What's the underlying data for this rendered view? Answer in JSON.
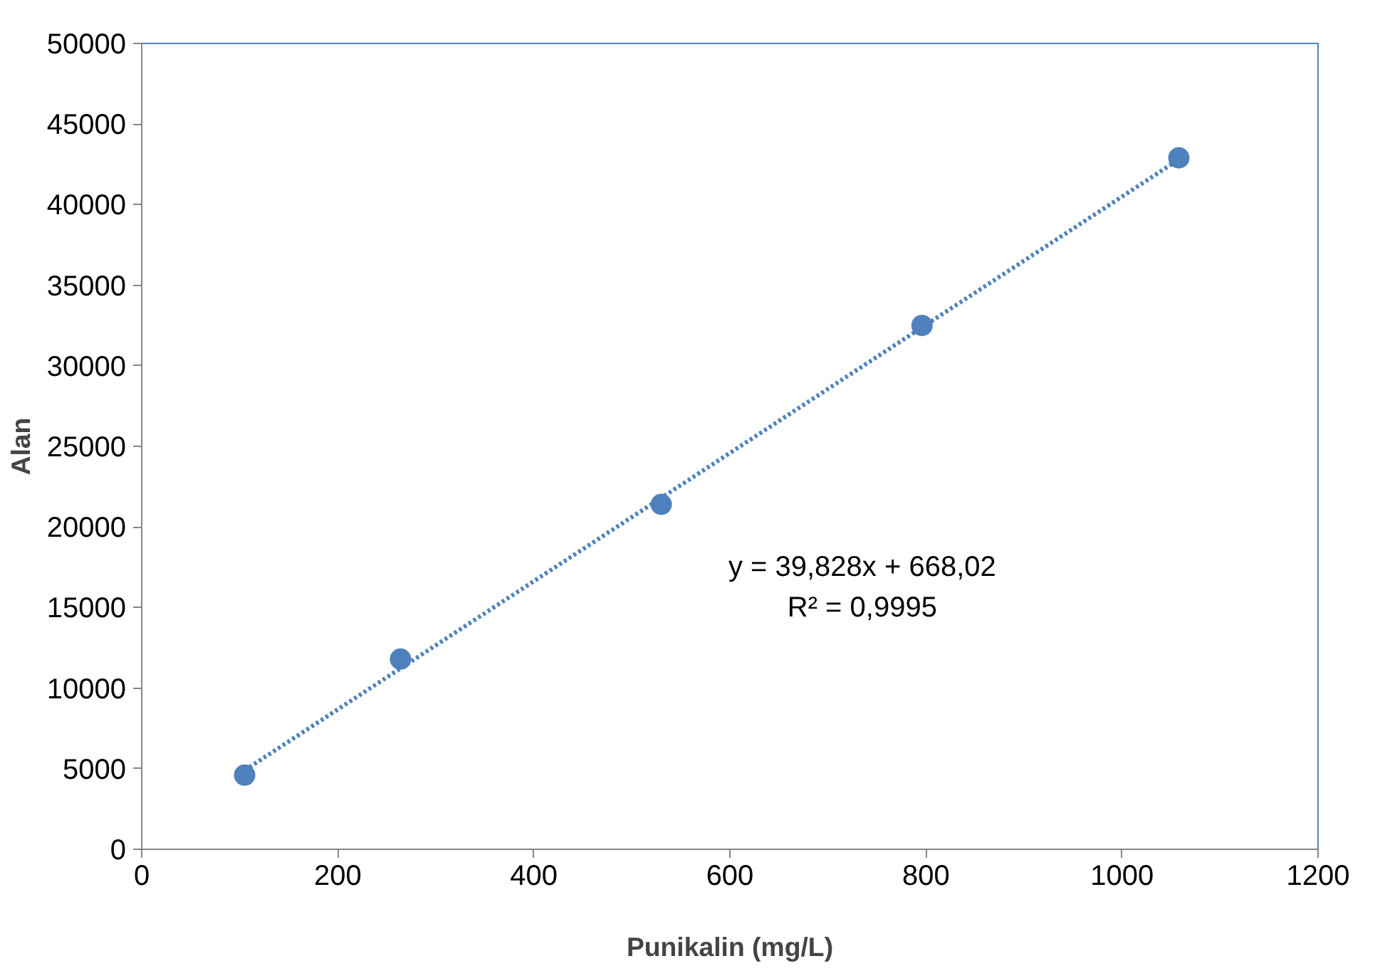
{
  "chart_data": {
    "type": "scatter",
    "xlabel": "Punikalin (mg/L)",
    "ylabel": "Alan",
    "xlim": [
      0,
      1200
    ],
    "xticks": [
      0,
      200,
      400,
      600,
      800,
      1000,
      1200
    ],
    "ylim": [
      0,
      50000
    ],
    "yticks": [
      0,
      5000,
      10000,
      15000,
      20000,
      25000,
      30000,
      35000,
      40000,
      45000,
      50000
    ],
    "grid": false,
    "series": [
      {
        "color": "#4f81bd",
        "marker": "circle",
        "x": [
          105,
          264,
          530,
          796,
          1058
        ],
        "values": [
          4600,
          11800,
          21400,
          32500,
          42900
        ]
      },
      {
        "type": "line",
        "color": "#4f81bd",
        "line_style": "dotted",
        "marker": "none",
        "x": [
          105,
          1058
        ],
        "values": [
          4900,
          42800
        ]
      }
    ],
    "annotations": [
      "y = 39,828x + 668,02",
      "R² = 0,9995"
    ]
  }
}
